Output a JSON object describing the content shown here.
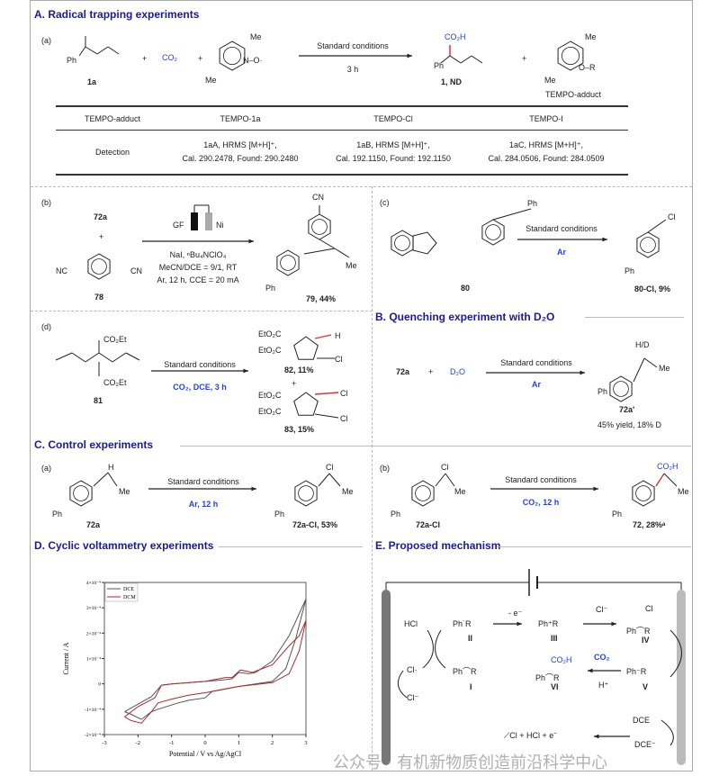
{
  "sections": {
    "A": {
      "title": "A. Radical trapping experiments",
      "label": "(a)",
      "reactant": "1a",
      "ph": "Ph",
      "co2": "CO₂",
      "plus": "+",
      "me": "Me",
      "o_radical": "N–O·",
      "conditions": "Standard conditions",
      "time": "3 h",
      "product_acid": "CO₂H",
      "product_label": "1, ND",
      "adduct_sub": "O–R",
      "adduct_label": "TEMPO-adduct",
      "table": {
        "headers": [
          "TEMPO-adduct",
          "TEMPO-1a",
          "TEMPO-Cl",
          "TEMPO-I"
        ],
        "row_label": "Detection",
        "cells": [
          {
            "line1": "1aA, HRMS [M+H]⁺,",
            "line2": "Cal. 290.2478, Found: 290.2480"
          },
          {
            "line1": "1aB, HRMS [M+H]⁺,",
            "line2": "Cal. 192.1150, Found: 192.1150"
          },
          {
            "line1": "1aC, HRMS [M+H]⁺,",
            "line2": "Cal. 284.0506, Found: 284.0509"
          }
        ]
      }
    },
    "b": {
      "label": "(b)",
      "reactant": "72a",
      "plus": "+",
      "nc": "NC",
      "cn": "CN",
      "reagent_label": "78",
      "gf": "GF",
      "ni": "Ni",
      "cond1": "NaI, ⁿBu₄NClO₄",
      "cond2": "MeCN/DCE = 9/1, RT",
      "cond3": "Ar, 12 h, CCE = 20 mA",
      "product_cn": "CN",
      "product_me": "Me",
      "product_ph": "Ph",
      "product_label": "79, 44%"
    },
    "c": {
      "label": "(c)",
      "reactant_label": "80",
      "ph": "Ph",
      "conditions": "Standard conditions",
      "atmosphere": "Ar",
      "product_cl": "Cl",
      "product_ph": "Ph",
      "product_label": "80-Cl, 9%"
    },
    "d": {
      "label": "(d)",
      "ester1": "CO₂Et",
      "ester2": "CO₂Et",
      "reactant_label": "81",
      "conditions": "Standard conditions",
      "cond2": "CO₂, DCE, 3 h",
      "p1_e1": "EtO₂C",
      "p1_e2": "EtO₂C",
      "p1_h": "H",
      "p1_cl": "Cl",
      "p1_label": "82, 11%",
      "plus": "+",
      "p2_e1": "EtO₂C",
      "p2_e2": "EtO₂C",
      "p2_cl1": "Cl",
      "p2_cl2": "Cl",
      "p2_label": "83, 15%"
    },
    "B": {
      "title": "B. Quenching experiment with D₂O",
      "reactant": "72a",
      "plus": "+",
      "d2o": "D₂O",
      "conditions": "Standard conditions",
      "atmosphere": "Ar",
      "hd": "H/D",
      "me": "Me",
      "ph": "Ph",
      "product_label": "72a'",
      "result": "45% yield, 18% D"
    },
    "C": {
      "title": "C. Control experiments",
      "a": {
        "label": "(a)",
        "h": "H",
        "me": "Me",
        "ph": "Ph",
        "reactant": "72a",
        "conditions": "Standard conditions",
        "cond2": "Ar, 12 h",
        "cl": "Cl",
        "pme": "Me",
        "pph": "Ph",
        "product_label": "72a-Cl, 53%"
      },
      "b": {
        "label": "(b)",
        "cl": "Cl",
        "me": "Me",
        "ph": "Ph",
        "reactant": "72a-Cl",
        "conditions": "Standard conditions",
        "cond2": "CO₂, 12 h",
        "co2h": "CO₂H",
        "pme": "Me",
        "pph": "Ph",
        "product_label": "72, 28%ᵃ"
      }
    },
    "D": {
      "title": "D. Cyclic voltammetry experiments"
    },
    "E": {
      "title": "E. Proposed mechanism",
      "hcl": "HCl",
      "cl_rad": "Cl·",
      "cl_anion": "Cl⁻",
      "sp_II": "Ph˙R",
      "II": "II",
      "I_sp": "Ph⌒R",
      "I": "I",
      "minus_e": "- e⁻",
      "sp_III": "Ph⁺R",
      "III": "III",
      "cl_minus": "Cl⁻",
      "sp_IV_cl": "Cl",
      "sp_IV": "Ph⌒R",
      "IV": "IV",
      "sp_V": "Ph⁻R",
      "V": "V",
      "co2": "CO₂",
      "h_plus": "H⁺",
      "sp_VI_acid": "CO₂H",
      "sp_VI": "Ph⌒R",
      "VI": "VI",
      "dce1": "DCE",
      "dce2": "DCE⁻",
      "bottom_eq": "⟋Cl + HCl + e⁻"
    }
  },
  "watermark": "公众号 · 有机新物质创造前沿科学中心",
  "chart_data": {
    "type": "line",
    "title": "",
    "xlabel": "Potential / V vs Ag/AgCl",
    "ylabel": "Current / A",
    "xlim": [
      -3,
      3
    ],
    "ylim": [
      -0.0002,
      0.0004
    ],
    "xticks": [
      "-3",
      "-2",
      "-1",
      "0",
      "1",
      "2",
      "3"
    ],
    "yticks": [
      "-2×10⁻⁴",
      "-1×10⁻⁴",
      "0",
      "1×10⁻⁴",
      "2×10⁻⁴",
      "3×10⁻⁴",
      "4×10⁻⁴"
    ],
    "legend": "top-left",
    "grid": false,
    "series": [
      {
        "name": "DCE",
        "color": "#555555",
        "x": [
          -2.4,
          -2.0,
          -1.6,
          -1.3,
          -1.0,
          0,
          0.5,
          0.8,
          1.0,
          1.3,
          1.5,
          2.0,
          2.5,
          3.0,
          2.7,
          2.4,
          2.0,
          1.0,
          0.2,
          0,
          -0.5,
          -0.8,
          -1.4,
          -1.6,
          -1.9,
          -2.2,
          -2.4
        ],
        "y": [
          -0.00011,
          -8e-05,
          -5e-05,
          -5e-06,
          0,
          1e-05,
          1.5e-05,
          2e-05,
          4.5e-05,
          4e-05,
          4.5e-05,
          9e-05,
          0.00019,
          0.000335,
          0.00018,
          6e-05,
          1e-05,
          -1e-05,
          -3e-05,
          -5.5e-05,
          -6.5e-05,
          -7.5e-05,
          -0.0001,
          -0.00011,
          -0.00014,
          -0.00012,
          -0.00011
        ]
      },
      {
        "name": "DCM",
        "color": "#b22a2a",
        "x": [
          -2.4,
          -2.0,
          -1.5,
          -1.3,
          -1.0,
          0,
          0.6,
          0.8,
          1.05,
          1.4,
          2.0,
          2.5,
          2.8,
          3.0,
          2.8,
          2.5,
          2.0,
          1.0,
          0.2,
          0,
          -0.5,
          -1.0,
          -1.4,
          -1.6,
          -1.9,
          -2.2,
          -2.4
        ],
        "y": [
          -0.00013,
          -9e-05,
          -5.5e-05,
          -5e-06,
          0,
          1e-05,
          2.5e-05,
          2.5e-05,
          5.5e-05,
          4.5e-05,
          7.5e-05,
          0.00015,
          0.00019,
          0.00025,
          0.00013,
          4e-05,
          5e-06,
          -1e-05,
          -3e-05,
          -3.5e-05,
          -4.5e-05,
          -6e-05,
          -7.5e-05,
          -0.00011,
          -0.000155,
          -0.000145,
          -0.00013
        ]
      }
    ]
  }
}
